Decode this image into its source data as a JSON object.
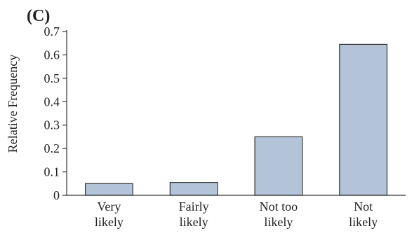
{
  "chart_data": {
    "type": "bar",
    "panel_label": "(C)",
    "title": "",
    "xlabel": "",
    "ylabel": "Relative Frequency",
    "categories": [
      [
        "Very",
        "likely"
      ],
      [
        "Fairly",
        "likely"
      ],
      [
        "Not too",
        "likely"
      ],
      [
        "Not",
        "likely"
      ]
    ],
    "values": [
      0.05,
      0.055,
      0.25,
      0.645
    ],
    "ylim": [
      0,
      0.7
    ],
    "yticks": [
      0,
      0.1,
      0.2,
      0.3,
      0.4,
      0.5,
      0.6,
      0.7
    ],
    "ytick_labels": [
      "0",
      "0.1",
      "0.2",
      "0.3",
      "0.4",
      "0.5",
      "0.6",
      "0.7"
    ],
    "grid": false,
    "legend": "none",
    "bar_color": "#b3c4d8",
    "bar_edge_color": "#333333",
    "axis_color": "#333333"
  }
}
